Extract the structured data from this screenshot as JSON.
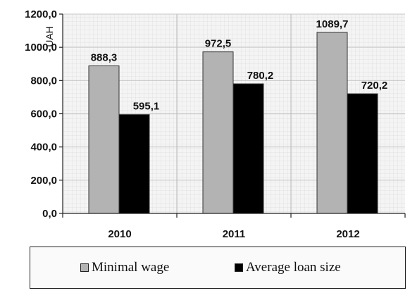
{
  "chart_data": {
    "type": "bar",
    "categories": [
      "2010",
      "2011",
      "2012"
    ],
    "series": [
      {
        "name": "Minimal wage",
        "values": [
          888.3,
          972.5,
          1089.7
        ],
        "labels": [
          "888,3",
          "972,5",
          "1089,7"
        ],
        "color": "#b3b3b3"
      },
      {
        "name": "Average loan size",
        "values": [
          595.1,
          780.2,
          720.2
        ],
        "labels": [
          "595,1",
          "780,2",
          "720,2"
        ],
        "color": "#000000"
      }
    ],
    "ylabel": "UAH",
    "ylim": [
      0,
      1200
    ],
    "yticks": [
      0,
      200,
      400,
      600,
      800,
      1000,
      1200
    ],
    "ytick_labels": [
      "0,0",
      "200,0",
      "400,0",
      "600,0",
      "800,0",
      "1000,0",
      "1200,0"
    ],
    "grid": true,
    "legend_position": "bottom"
  }
}
